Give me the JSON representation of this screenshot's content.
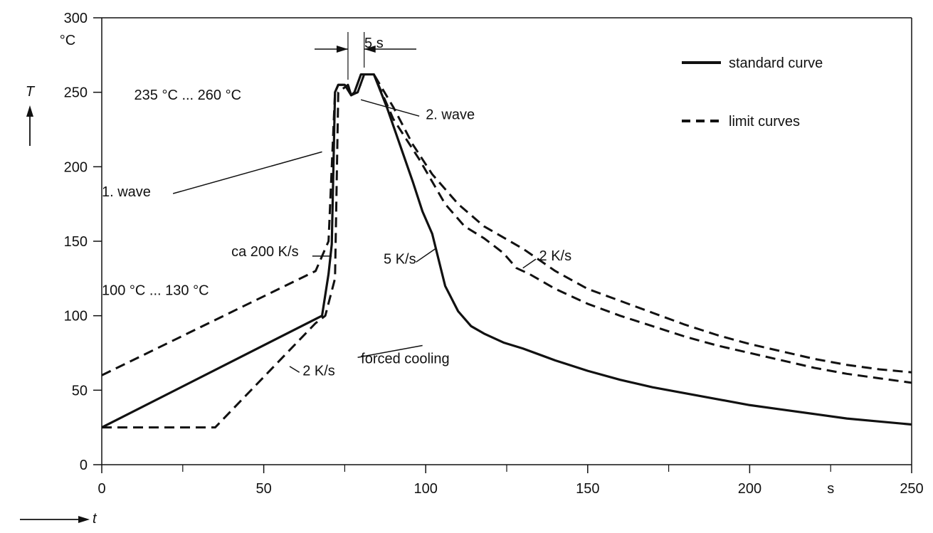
{
  "chart_data": [
    {
      "type": "line",
      "title": "",
      "ylabel": "T",
      "xlabel": "t",
      "y_unit": "°C",
      "x_unit": "s",
      "ylim": [
        0,
        300
      ],
      "xlim": [
        0,
        250
      ],
      "grid": false,
      "legend_position": "top-right",
      "x_ticks": [
        0,
        50,
        100,
        150,
        200,
        250
      ],
      "x_tick_labels": [
        "0",
        "50",
        "100",
        "150",
        "200",
        "250"
      ],
      "y_ticks": [
        0,
        50,
        100,
        150,
        200,
        250,
        300
      ],
      "y_tick_labels": [
        "0",
        "50",
        "100",
        "150",
        "200",
        "250",
        "300"
      ],
      "legend": [
        {
          "label": "standard curve",
          "style": "solid"
        },
        {
          "label": "limit curves",
          "style": "dashed"
        }
      ],
      "series": [
        {
          "name": "standard curve",
          "style": "solid",
          "x": [
            0,
            68,
            70,
            71,
            72,
            73,
            75,
            77,
            78,
            80,
            84,
            88,
            92,
            96,
            99,
            102,
            106,
            110,
            114,
            118,
            124,
            130,
            140,
            150,
            160,
            170,
            180,
            190,
            200,
            210,
            220,
            230,
            240,
            250
          ],
          "y": [
            25,
            100,
            128,
            148,
            250,
            255,
            255,
            248,
            250,
            262,
            262,
            240,
            215,
            190,
            170,
            155,
            120,
            103,
            93,
            88,
            82,
            78,
            70,
            63,
            57,
            52,
            48,
            44,
            40,
            37,
            34,
            31,
            29,
            27
          ]
        },
        {
          "name": "lower limit",
          "style": "dashed",
          "x": [
            0,
            35,
            66,
            69,
            72,
            73,
            76,
            77,
            79,
            81,
            84,
            90,
            98,
            106,
            112,
            118,
            124,
            128,
            132,
            140,
            150,
            160,
            170,
            180,
            190,
            200,
            210,
            220,
            230,
            240,
            250
          ],
          "y": [
            25,
            25,
            95,
            100,
            125,
            250,
            255,
            248,
            250,
            262,
            262,
            232,
            205,
            175,
            160,
            152,
            142,
            132,
            128,
            118,
            108,
            100,
            93,
            86,
            80,
            75,
            70,
            65,
            61,
            58,
            55
          ]
        },
        {
          "name": "upper limit",
          "style": "dashed",
          "x": [
            0,
            66,
            70,
            72,
            73,
            76,
            77,
            79,
            81,
            84,
            90,
            96,
            102,
            110,
            118,
            130,
            140,
            150,
            160,
            170,
            180,
            190,
            200,
            210,
            220,
            230,
            240,
            250
          ],
          "y": [
            60,
            130,
            150,
            250,
            255,
            255,
            248,
            250,
            262,
            262,
            240,
            215,
            195,
            175,
            160,
            145,
            130,
            118,
            110,
            102,
            94,
            87,
            81,
            76,
            71,
            67,
            64,
            62
          ]
        }
      ],
      "annotations": [
        {
          "text": "5 s",
          "x": 84,
          "y": 280
        },
        {
          "text": "235 °C ... 260 °C",
          "x": 10,
          "y": 245
        },
        {
          "text": "2. wave",
          "x": 100,
          "y": 232
        },
        {
          "text": "1. wave",
          "x": 0,
          "y": 180
        },
        {
          "text": "ca 200 K/s",
          "x": 40,
          "y": 140
        },
        {
          "text": "5 K/s",
          "x": 87,
          "y": 135
        },
        {
          "text": "2 K/s",
          "x": 135,
          "y": 137
        },
        {
          "text": "100 °C ... 130 °C",
          "x": 0,
          "y": 114
        },
        {
          "text": "forced cooling",
          "x": 80,
          "y": 68
        },
        {
          "text": "2 K/s",
          "x": 62,
          "y": 60
        }
      ]
    }
  ]
}
